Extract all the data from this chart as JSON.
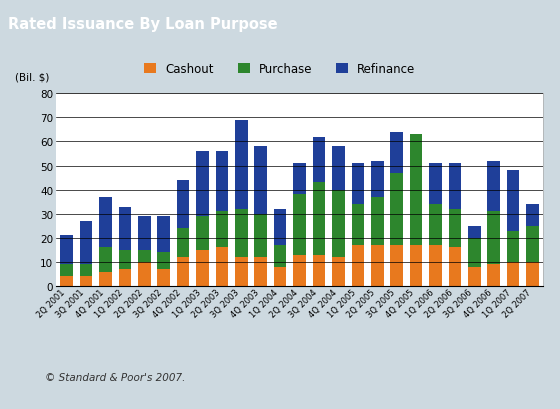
{
  "title": "Rated Issuance By Loan Purpose",
  "title_bg_color": "#607d8b",
  "title_text_color": "#ffffff",
  "ylabel": "(Bil. $)",
  "ylim": [
    0,
    80
  ],
  "yticks": [
    0,
    10,
    20,
    30,
    40,
    50,
    60,
    70,
    80
  ],
  "plot_bg_color": "#ffffff",
  "footer": "© Standard & Poor's 2007.",
  "legend_labels": [
    "Cashout",
    "Purchase",
    "Refinance"
  ],
  "categories": [
    "2Q 2001",
    "3Q 2001",
    "4Q 2001",
    "1Q 2002",
    "2Q 2002",
    "3Q 2002",
    "4Q 2002",
    "1Q 2003",
    "2Q 2003",
    "3Q 2003",
    "4Q 2003",
    "1Q 2004",
    "2Q 2004",
    "3Q 2004",
    "4Q 2004",
    "1Q 2005",
    "2Q 2005",
    "3Q 2005",
    "4Q 2005",
    "1Q 2006",
    "2Q 2006",
    "3Q 2006",
    "4Q 2006",
    "1Q 2007",
    "2Q 2007"
  ],
  "cashout": [
    4,
    4,
    6,
    7,
    10,
    7,
    12,
    15,
    16,
    12,
    12,
    8,
    13,
    13,
    12,
    17,
    17,
    17,
    17,
    17,
    16,
    8,
    9,
    10,
    10
  ],
  "purchase": [
    5,
    5,
    10,
    8,
    5,
    7,
    12,
    14,
    15,
    20,
    18,
    9,
    25,
    30,
    28,
    17,
    20,
    30,
    46,
    17,
    16,
    12,
    22,
    13,
    15
  ],
  "refinance": [
    12,
    18,
    21,
    18,
    14,
    15,
    20,
    27,
    25,
    37,
    28,
    15,
    13,
    19,
    18,
    17,
    15,
    17,
    0,
    17,
    19,
    5,
    21,
    25,
    9
  ],
  "bar_width": 0.65,
  "cashout_color": "#e8791e",
  "purchase_color": "#2d862d",
  "refinance_color": "#1f3f99",
  "grid_color": "#555555",
  "outer_bg": "#cdd9e0",
  "border_color": "#8899aa"
}
